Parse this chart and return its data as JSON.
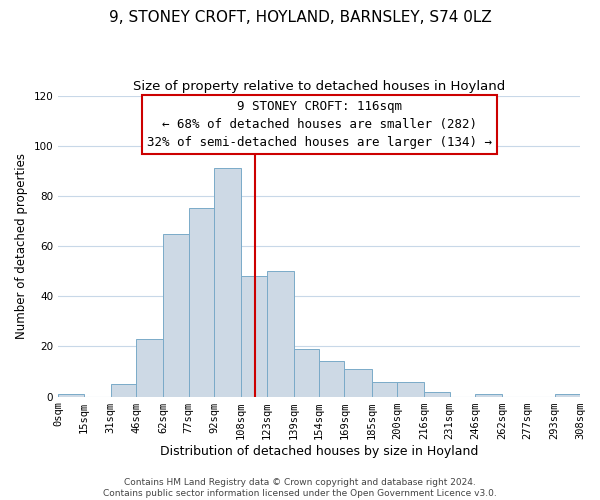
{
  "title": "9, STONEY CROFT, HOYLAND, BARNSLEY, S74 0LZ",
  "subtitle": "Size of property relative to detached houses in Hoyland",
  "xlabel": "Distribution of detached houses by size in Hoyland",
  "ylabel": "Number of detached properties",
  "footer_lines": [
    "Contains HM Land Registry data © Crown copyright and database right 2024.",
    "Contains public sector information licensed under the Open Government Licence v3.0."
  ],
  "bar_edges": [
    0,
    15,
    31,
    46,
    62,
    77,
    92,
    108,
    123,
    139,
    154,
    169,
    185,
    200,
    216,
    231,
    246,
    262,
    277,
    293,
    308
  ],
  "bar_heights": [
    1,
    0,
    5,
    23,
    65,
    75,
    91,
    48,
    50,
    19,
    14,
    11,
    6,
    6,
    2,
    0,
    1,
    0,
    0,
    1
  ],
  "tick_labels": [
    "0sqm",
    "15sqm",
    "31sqm",
    "46sqm",
    "62sqm",
    "77sqm",
    "92sqm",
    "108sqm",
    "123sqm",
    "139sqm",
    "154sqm",
    "169sqm",
    "185sqm",
    "200sqm",
    "216sqm",
    "231sqm",
    "246sqm",
    "262sqm",
    "277sqm",
    "293sqm",
    "308sqm"
  ],
  "bar_color": "#cdd9e5",
  "bar_edge_color": "#7aaac8",
  "property_line_x": 116,
  "property_line_color": "#cc0000",
  "annotation_title": "9 STONEY CROFT: 116sqm",
  "annotation_line1": "← 68% of detached houses are smaller (282)",
  "annotation_line2": "32% of semi-detached houses are larger (134) →",
  "annotation_box_color": "#ffffff",
  "annotation_box_edge_color": "#cc0000",
  "ylim": [
    0,
    120
  ],
  "xlim": [
    0,
    308
  ],
  "yticks": [
    0,
    20,
    40,
    60,
    80,
    100,
    120
  ],
  "title_fontsize": 11,
  "subtitle_fontsize": 9.5,
  "xlabel_fontsize": 9,
  "ylabel_fontsize": 8.5,
  "tick_fontsize": 7.5,
  "annotation_fontsize": 9,
  "footer_fontsize": 6.5,
  "grid_color": "#c8d8e8"
}
